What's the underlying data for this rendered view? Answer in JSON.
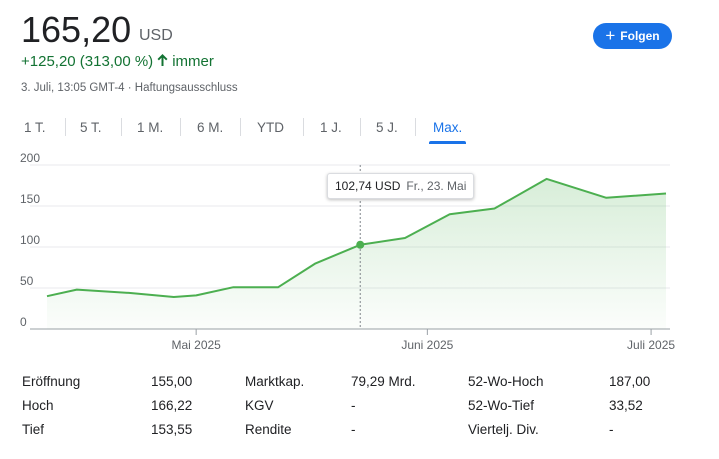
{
  "quote": {
    "price": "165,20",
    "currency": "USD",
    "change": "+125,20 (313,00 %)",
    "change_period": "immer",
    "meta": "3. Juli, 13:05 GMT-4 · Haftungsausschluss"
  },
  "follow_button": {
    "label": "Folgen",
    "icon": "plus-icon"
  },
  "tabs": [
    "1 T.",
    "5 T.",
    "1 M.",
    "6 M.",
    "YTD",
    "1 J.",
    "5 J.",
    "Max."
  ],
  "active_tab": "Max.",
  "tooltip": {
    "value": "102,74 USD",
    "date": "Fr., 23. Mai"
  },
  "colors": {
    "accent": "#1a73e8",
    "positive": "#137333",
    "line": "#4caf50"
  },
  "chart_data": {
    "type": "area",
    "y_ticks": [
      "0",
      "50",
      "100",
      "150",
      "200"
    ],
    "ylim": [
      0,
      200
    ],
    "x_ticks": [
      {
        "label": "Mai 2025",
        "date": "2025-05-01"
      },
      {
        "label": "Juni 2025",
        "date": "2025-06-01"
      },
      {
        "label": "Juli 2025",
        "date": "2025-07-01"
      }
    ],
    "xlim": [
      "2025-04-11",
      "2025-07-03"
    ],
    "series": [
      {
        "points": [
          {
            "x": "2025-04-11",
            "y": 40
          },
          {
            "x": "2025-04-15",
            "y": 48
          },
          {
            "x": "2025-04-22",
            "y": 44
          },
          {
            "x": "2025-04-28",
            "y": 39
          },
          {
            "x": "2025-05-01",
            "y": 41
          },
          {
            "x": "2025-05-06",
            "y": 51
          },
          {
            "x": "2025-05-12",
            "y": 51
          },
          {
            "x": "2025-05-17",
            "y": 80
          },
          {
            "x": "2025-05-23",
            "y": 102.74
          },
          {
            "x": "2025-05-29",
            "y": 111
          },
          {
            "x": "2025-06-04",
            "y": 140
          },
          {
            "x": "2025-06-10",
            "y": 147
          },
          {
            "x": "2025-06-17",
            "y": 183
          },
          {
            "x": "2025-06-25",
            "y": 160
          },
          {
            "x": "2025-07-03",
            "y": 165.2
          }
        ]
      }
    ],
    "hover": {
      "x": "2025-05-23",
      "y": 102.74
    },
    "grid": true
  },
  "stats": [
    [
      {
        "label": "Eröffnung",
        "value": "155,00"
      },
      {
        "label": "Marktkap.",
        "value": "79,29 Mrd."
      },
      {
        "label": "52-Wo-Hoch",
        "value": "187,00"
      }
    ],
    [
      {
        "label": "Hoch",
        "value": "166,22"
      },
      {
        "label": "KGV",
        "value": "-"
      },
      {
        "label": "52-Wo-Tief",
        "value": "33,52"
      }
    ],
    [
      {
        "label": "Tief",
        "value": "153,55"
      },
      {
        "label": "Rendite",
        "value": "-"
      },
      {
        "label": "Viertelj. Div.",
        "value": "-"
      }
    ]
  ]
}
